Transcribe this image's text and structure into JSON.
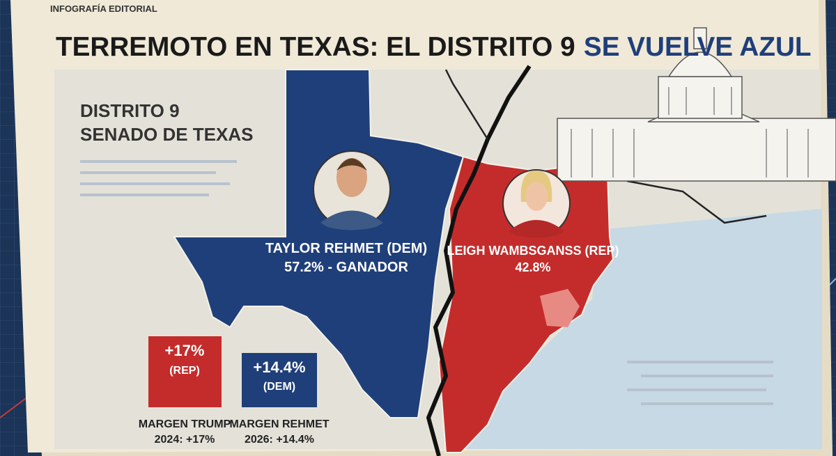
{
  "header": {
    "kicker": "INFOGRAFÍA EDITORIAL",
    "title": "TERREMOTO EN TEXAS: EL DISTRITO 9",
    "title_highlight": "SE VUELVE AZUL"
  },
  "district": {
    "line1": "DISTRITO 9",
    "line2": "SENADO DE TEXAS"
  },
  "candidates": [
    {
      "name": "TAYLOR REHMET (DEM)",
      "result": "57.2% - GANADOR"
    },
    {
      "name": "LEIGH WAMBSGANSS (REP)",
      "result": "42.8%"
    }
  ],
  "margins": [
    {
      "value": "+17%",
      "party": "(REP)",
      "label": "MARGEN TRUMP",
      "detail": "2024: +17%"
    },
    {
      "value": "+14.4%",
      "party": "(DEM)",
      "label": "MARGEN REHMET",
      "detail": "2026: +14.4%"
    }
  ]
}
